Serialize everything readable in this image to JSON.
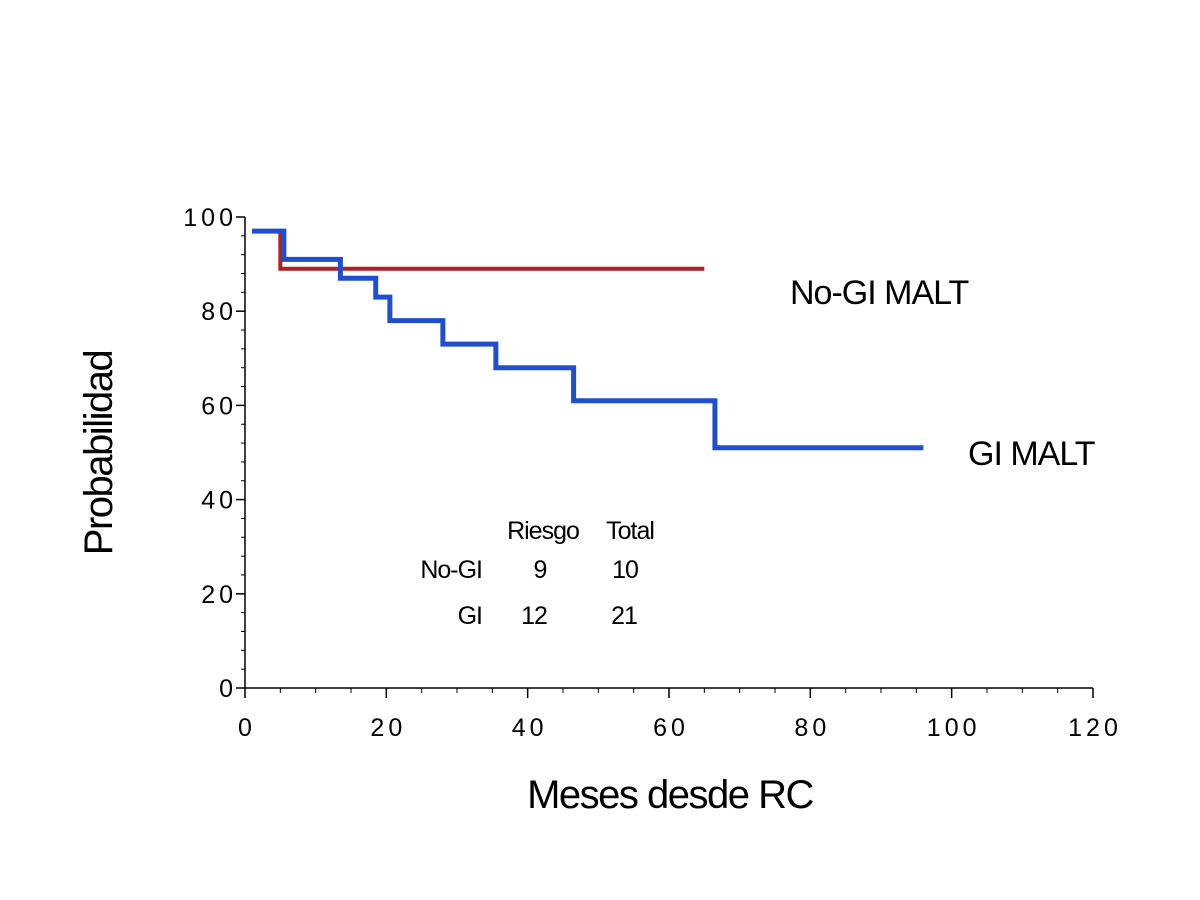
{
  "chart_data": {
    "type": "line",
    "step": true,
    "xlabel": "Meses desde RC",
    "ylabel": "Probabilidad",
    "xlim": [
      0,
      120
    ],
    "ylim": [
      0,
      100
    ],
    "x_ticks": [
      0,
      20,
      40,
      60,
      80,
      100,
      120
    ],
    "y_ticks": [
      0,
      20,
      40,
      60,
      80,
      100
    ],
    "grid": false,
    "series": [
      {
        "name": "No-GI MALT",
        "color": "#b22222",
        "x": [
          1,
          5,
          65
        ],
        "y": [
          97,
          89,
          89
        ]
      },
      {
        "name": "GI MALT",
        "color": "#1f4fd0",
        "x": [
          1,
          5.5,
          13.5,
          18.5,
          20.5,
          28,
          35.5,
          46.5,
          66.5,
          96
        ],
        "y": [
          97,
          91,
          87,
          83,
          78,
          73,
          68,
          61,
          51,
          51
        ]
      }
    ],
    "risk_table": {
      "headers": [
        "Riesgo",
        "Total"
      ],
      "rows": [
        {
          "label": "No-GI",
          "riesgo": "9",
          "total": "10"
        },
        {
          "label": "GI",
          "riesgo": "12",
          "total": "21"
        }
      ]
    }
  }
}
